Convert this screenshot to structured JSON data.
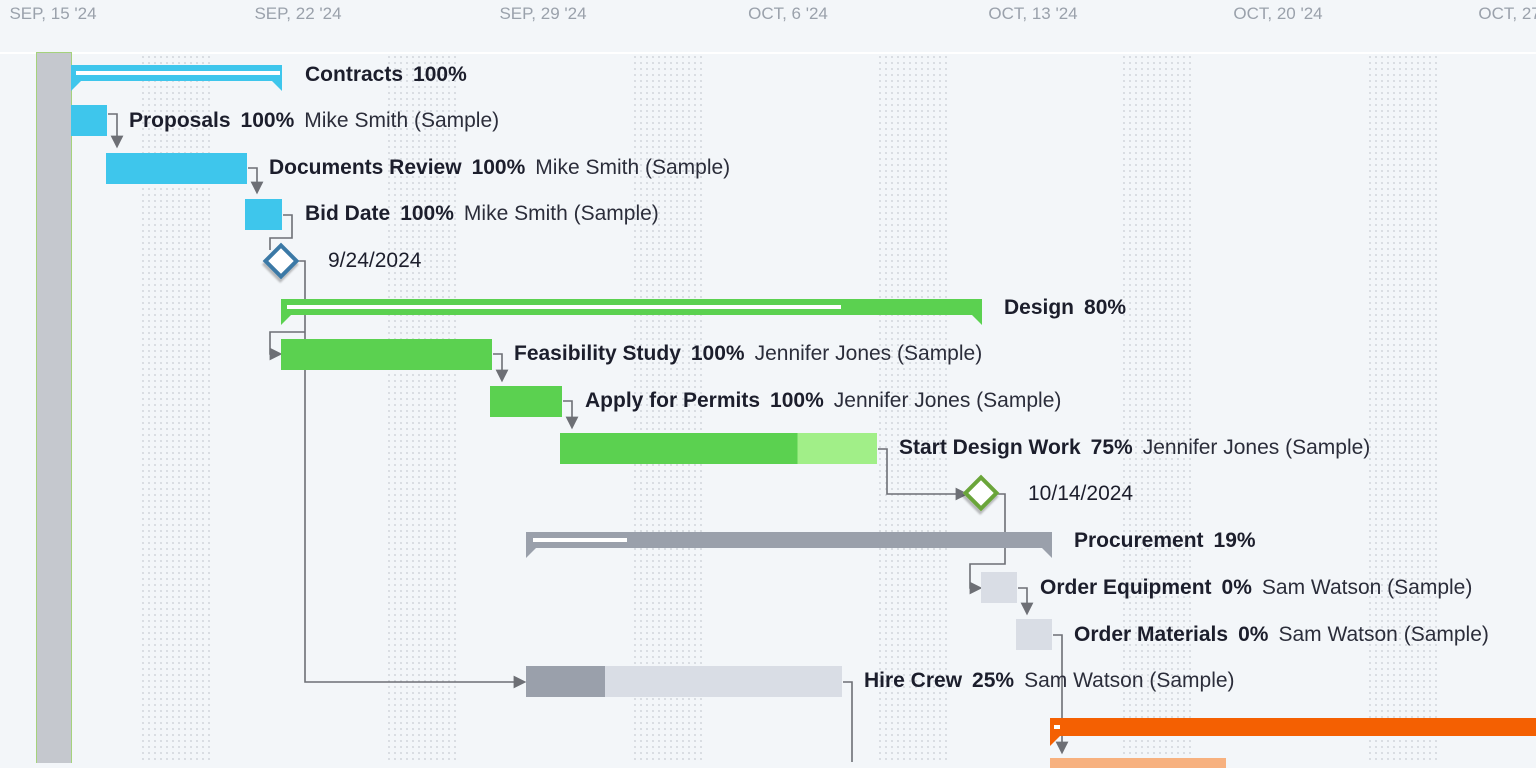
{
  "timeline": {
    "ticks": [
      "SEP, 15 '24",
      "SEP, 22 '24",
      "SEP, 29 '24",
      "OCT, 6 '24",
      "OCT, 13 '24",
      "OCT, 20 '24",
      "OCT, 27 '24"
    ]
  },
  "colors": {
    "contracts": "#3ec6ec",
    "design": "#5bd150",
    "design_light": "#a1ef88",
    "procurement": "#9aa0ab",
    "procurement_light": "#d9dde5",
    "construction": "#f46002",
    "construction_light": "#f7b17f",
    "milestone_blue": "#3b79a6",
    "milestone_green": "#6aa53a",
    "connector": "#6d6f75"
  },
  "tasks": [
    {
      "name": "Contracts",
      "percent": "100%",
      "assignee": ""
    },
    {
      "name": "Proposals",
      "percent": "100%",
      "assignee": "Mike Smith (Sample)"
    },
    {
      "name": "Documents Review",
      "percent": "100%",
      "assignee": "Mike Smith (Sample)"
    },
    {
      "name": "Bid Date",
      "percent": "100%",
      "assignee": "Mike Smith (Sample)"
    },
    {
      "name": "9/24/2024",
      "percent": "",
      "assignee": ""
    },
    {
      "name": "Design",
      "percent": "80%",
      "assignee": ""
    },
    {
      "name": "Feasibility Study",
      "percent": "100%",
      "assignee": "Jennifer Jones (Sample)"
    },
    {
      "name": "Apply for Permits",
      "percent": "100%",
      "assignee": "Jennifer Jones (Sample)"
    },
    {
      "name": "Start Design Work",
      "percent": "75%",
      "assignee": "Jennifer Jones (Sample)"
    },
    {
      "name": "10/14/2024",
      "percent": "",
      "assignee": ""
    },
    {
      "name": "Procurement",
      "percent": "19%",
      "assignee": ""
    },
    {
      "name": "Order Equipment",
      "percent": "0%",
      "assignee": "Sam Watson (Sample)"
    },
    {
      "name": "Order Materials",
      "percent": "0%",
      "assignee": "Sam Watson (Sample)"
    },
    {
      "name": "Hire Crew",
      "percent": "25%",
      "assignee": "Sam Watson (Sample)"
    }
  ]
}
